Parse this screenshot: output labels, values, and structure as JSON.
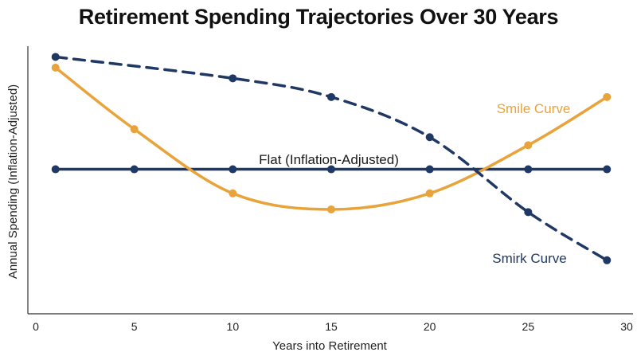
{
  "chart_data": {
    "type": "line",
    "title": "Retirement Spending Trajectories Over 30 Years",
    "xlabel": "Years into Retirement",
    "ylabel": "Annual Spending (Inflation-Adjusted)",
    "xlim": [
      0,
      30
    ],
    "ylim": [
      0,
      100
    ],
    "xticks": [
      0,
      5,
      10,
      15,
      20,
      25,
      30
    ],
    "grid": false,
    "series": [
      {
        "name": "Flat (Inflation-Adjusted)",
        "color": "#1f3864",
        "style": "solid",
        "x": [
          1,
          5,
          10,
          15,
          20,
          25,
          29
        ],
        "y": [
          54,
          54,
          54,
          54,
          54,
          54,
          54
        ]
      },
      {
        "name": "Smile Curve",
        "color": "#e8a33a",
        "style": "solid",
        "x": [
          1,
          5,
          10,
          15,
          20,
          25,
          29
        ],
        "y": [
          92,
          69,
          45,
          39,
          45,
          63,
          81
        ]
      },
      {
        "name": "Smirk Curve",
        "color": "#1f3864",
        "style": "dashed",
        "x": [
          1,
          10,
          15,
          20,
          25,
          29
        ],
        "y": [
          96,
          88,
          81,
          66,
          38,
          20
        ]
      }
    ]
  }
}
